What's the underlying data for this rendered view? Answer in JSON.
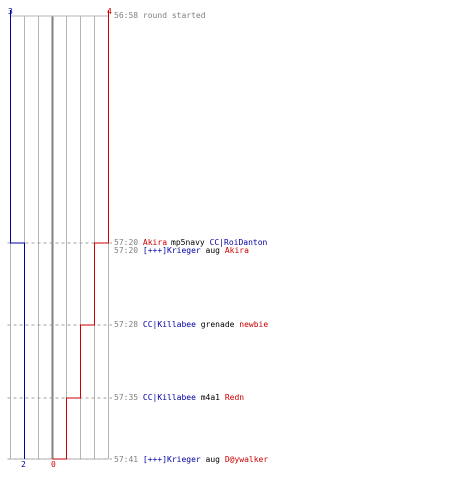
{
  "colors": {
    "blue_team": "#0000a0",
    "red_team": "#cc0000",
    "timestamp": "#808080",
    "weapon": "#000000",
    "grid": "#b4b4b4",
    "center_line": "#808080",
    "dashed_line": "#a0a0a0"
  },
  "chart_data": {
    "type": "line",
    "title": "",
    "xlabel": "",
    "ylabel": "",
    "blue_team": {
      "start_count": "3",
      "end_count": "2",
      "counts": [
        3,
        3,
        2,
        2,
        2,
        2
      ]
    },
    "red_team": {
      "start_count": "4",
      "end_count": "0",
      "counts": [
        4,
        4,
        3,
        2,
        1,
        0
      ]
    },
    "events_times": [
      "56:58",
      "57:20",
      "57:20",
      "57:28",
      "57:35",
      "57:41"
    ]
  },
  "log": {
    "start": {
      "time": "56:58",
      "text": "round started"
    },
    "kills": [
      {
        "time": "57:20",
        "killer": "Akira",
        "killer_team": "red",
        "weapon": "mp5navy",
        "victim": "CC|RoiDanton",
        "victim_team": "blue"
      },
      {
        "time": "57:20",
        "killer": "[+++]Krieger",
        "killer_team": "blue",
        "weapon": "aug",
        "victim": "Akira",
        "victim_team": "red"
      },
      {
        "time": "57:28",
        "killer": "CC|Killabee",
        "killer_team": "blue",
        "weapon": "grenade",
        "victim": "newbie",
        "victim_team": "red"
      },
      {
        "time": "57:35",
        "killer": "CC|Killabee",
        "killer_team": "blue",
        "weapon": "m4a1",
        "victim": "Redn",
        "victim_team": "red"
      },
      {
        "time": "57:41",
        "killer": "[+++]Krieger",
        "killer_team": "blue",
        "weapon": "aug",
        "victim": "D@ywalker",
        "victim_team": "red"
      }
    ]
  }
}
